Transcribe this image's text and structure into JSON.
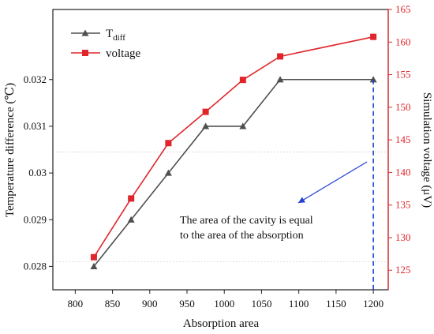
{
  "chart_data": {
    "type": "line",
    "xlabel": "Absorption area",
    "ylabel_left": "Temperature difference (℃)",
    "ylabel_right": "Simulation voltage (μV)",
    "x_ticks": [
      800,
      850,
      900,
      950,
      1000,
      1050,
      1100,
      1150,
      1200
    ],
    "xlim": [
      770,
      1220
    ],
    "y_left_ticks": [
      "0.028",
      "0.029",
      "0.03",
      "0.031",
      "0.032"
    ],
    "y_left_lim": [
      0.0275,
      0.0335
    ],
    "y_right_ticks": [
      125,
      130,
      135,
      140,
      145,
      150,
      155,
      160,
      165
    ],
    "y_right_lim": [
      122,
      165
    ],
    "grid": "two horizontal dotted lines",
    "legend_placement": "top-left",
    "series": [
      {
        "name": "T",
        "name_subscript": "diff",
        "axis": "left",
        "color": "#505050",
        "marker": "triangle",
        "x": [
          825,
          875,
          925,
          975,
          1025,
          1075,
          1200
        ],
        "y": [
          0.028,
          0.029,
          0.03,
          0.031,
          0.031,
          0.032,
          0.032
        ]
      },
      {
        "name": "voltage",
        "axis": "right",
        "color": "#e0262b",
        "marker": "square",
        "x": [
          825,
          875,
          925,
          975,
          1025,
          1075,
          1200
        ],
        "y": [
          127.0,
          136.0,
          144.5,
          149.3,
          154.2,
          157.8,
          160.8
        ]
      }
    ],
    "vertical_marker": {
      "x": 1200,
      "color": "#1f3fd6",
      "style": "dashed"
    },
    "annotation": {
      "lines": [
        "The area of the cavity is equal",
        "to the area of the absorption"
      ],
      "arrow_color": "#1f3fd6"
    }
  }
}
